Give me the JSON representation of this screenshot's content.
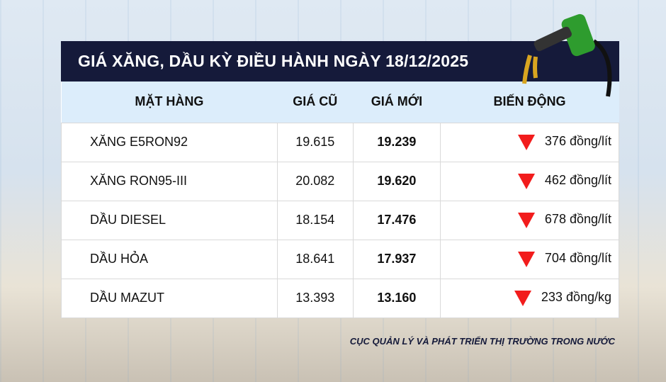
{
  "title": "GIÁ XĂNG, DẦU KỲ ĐIỀU HÀNH NGÀY 18/12/2025",
  "headers": [
    "MẶT HÀNG",
    "GIÁ CŨ",
    "GIÁ MỚI",
    "BIẾN ĐỘNG"
  ],
  "rows": [
    {
      "name": "XĂNG E5RON92",
      "old": "19.615",
      "new": "19.239",
      "change": "376 đồng/lít",
      "direction": "down"
    },
    {
      "name": "XĂNG RON95-III",
      "old": "20.082",
      "new": "19.620",
      "change": "462 đồng/lít",
      "direction": "down"
    },
    {
      "name": "DẦU DIESEL",
      "old": "18.154",
      "new": "17.476",
      "change": "678 đồng/lít",
      "direction": "down"
    },
    {
      "name": "DẦU HỎA",
      "old": "18.641",
      "new": "17.937",
      "change": "704 đồng/lít",
      "direction": "down"
    },
    {
      "name": "DẦU MAZUT",
      "old": "13.393",
      "new": "13.160",
      "change": "233 đồng/kg",
      "direction": "down"
    }
  ],
  "source": "CỤC QUẢN LÝ VÀ PHÁT TRIỂN THỊ TRƯỜNG TRONG NƯỚC",
  "colors": {
    "header_bg": "#151a3a",
    "table_head_bg": "#dcedfb",
    "down": "#f21c1c"
  }
}
